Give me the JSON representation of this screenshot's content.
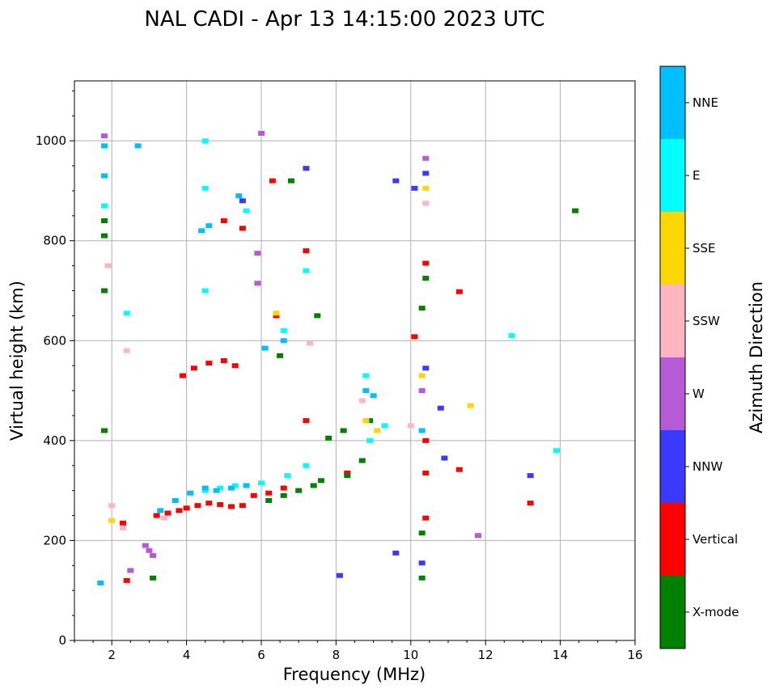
{
  "chart_data": {
    "type": "scatter",
    "title": "NAL CADI - Apr 13 14:15:00 2023 UTC",
    "xlabel": "Frequency (MHz)",
    "ylabel": "Virtual height (km)",
    "xlim": [
      1,
      16
    ],
    "ylim": [
      0,
      1120
    ],
    "xticks": [
      2,
      4,
      6,
      8,
      10,
      12,
      14,
      16
    ],
    "yticks": [
      0,
      200,
      400,
      600,
      800,
      1000
    ],
    "grid": true,
    "colorbar": {
      "title": "Azimuth Direction",
      "categories": [
        {
          "name": "X-mode",
          "color": "#008000"
        },
        {
          "name": "Vertical",
          "color": "#ff0000"
        },
        {
          "name": "NNW",
          "color": "#3a3aff"
        },
        {
          "name": "W",
          "color": "#b65ad6"
        },
        {
          "name": "SSW",
          "color": "#ffb6c1"
        },
        {
          "name": "SSE",
          "color": "#ffd700"
        },
        {
          "name": "E",
          "color": "#00ffff"
        },
        {
          "name": "NNE",
          "color": "#00bfff"
        }
      ]
    },
    "series": [
      {
        "name": "Vertical",
        "points": [
          [
            3.2,
            250
          ],
          [
            3.5,
            255
          ],
          [
            3.8,
            260
          ],
          [
            4.0,
            265
          ],
          [
            4.3,
            270
          ],
          [
            4.6,
            275
          ],
          [
            4.9,
            272
          ],
          [
            5.2,
            268
          ],
          [
            5.5,
            270
          ],
          [
            5.8,
            290
          ],
          [
            6.2,
            295
          ],
          [
            6.6,
            305
          ],
          [
            3.9,
            530
          ],
          [
            4.2,
            545
          ],
          [
            4.6,
            555
          ],
          [
            5.0,
            560
          ],
          [
            5.3,
            550
          ],
          [
            6.3,
            920
          ],
          [
            5.0,
            840
          ],
          [
            5.5,
            825
          ],
          [
            10.4,
            400
          ],
          [
            10.4,
            335
          ],
          [
            10.4,
            245
          ],
          [
            10.4,
            755
          ],
          [
            11.3,
            698
          ],
          [
            10.1,
            608
          ],
          [
            13.2,
            275
          ],
          [
            11.3,
            342
          ],
          [
            7.2,
            440
          ],
          [
            8.3,
            335
          ],
          [
            6.4,
            650
          ],
          [
            7.2,
            780
          ],
          [
            2.4,
            120
          ],
          [
            2.3,
            235
          ]
        ]
      },
      {
        "name": "X-mode",
        "points": [
          [
            6.2,
            280
          ],
          [
            6.6,
            290
          ],
          [
            7.0,
            300
          ],
          [
            7.4,
            310
          ],
          [
            7.6,
            320
          ],
          [
            8.3,
            330
          ],
          [
            8.7,
            360
          ],
          [
            8.2,
            420
          ],
          [
            8.9,
            440
          ],
          [
            14.4,
            860
          ],
          [
            10.3,
            665
          ],
          [
            10.4,
            725
          ],
          [
            10.3,
            215
          ],
          [
            10.3,
            125
          ],
          [
            3.1,
            125
          ],
          [
            6.5,
            570
          ],
          [
            7.5,
            650
          ],
          [
            6.8,
            920
          ],
          [
            1.8,
            840
          ],
          [
            1.8,
            810
          ],
          [
            1.8,
            700
          ],
          [
            1.8,
            420
          ],
          [
            7.8,
            405
          ]
        ]
      },
      {
        "name": "NNW",
        "points": [
          [
            10.4,
            935
          ],
          [
            10.1,
            905
          ],
          [
            9.6,
            920
          ],
          [
            10.4,
            545
          ],
          [
            10.8,
            465
          ],
          [
            10.9,
            365
          ],
          [
            13.2,
            330
          ],
          [
            10.3,
            155
          ],
          [
            8.1,
            130
          ],
          [
            9.6,
            175
          ],
          [
            5.5,
            880
          ],
          [
            7.2,
            945
          ]
        ]
      },
      {
        "name": "W",
        "points": [
          [
            3.0,
            180
          ],
          [
            3.1,
            170
          ],
          [
            2.9,
            190
          ],
          [
            10.4,
            965
          ],
          [
            10.3,
            500
          ],
          [
            11.8,
            210
          ],
          [
            5.9,
            775
          ],
          [
            5.9,
            715
          ],
          [
            6.0,
            1015
          ],
          [
            2.5,
            140
          ],
          [
            1.8,
            1010
          ]
        ]
      },
      {
        "name": "SSW",
        "points": [
          [
            3.4,
            245
          ],
          [
            2.3,
            225
          ],
          [
            2.0,
            270
          ],
          [
            8.7,
            480
          ],
          [
            10.0,
            430
          ],
          [
            10.4,
            875
          ],
          [
            2.4,
            580
          ],
          [
            7.3,
            595
          ],
          [
            1.9,
            750
          ]
        ]
      },
      {
        "name": "SSE",
        "points": [
          [
            8.8,
            440
          ],
          [
            9.1,
            420
          ],
          [
            10.3,
            530
          ],
          [
            11.6,
            470
          ],
          [
            6.4,
            655
          ],
          [
            10.4,
            905
          ],
          [
            2.0,
            240
          ]
        ]
      },
      {
        "name": "E",
        "points": [
          [
            4.5,
            300
          ],
          [
            4.9,
            305
          ],
          [
            5.3,
            310
          ],
          [
            6.0,
            315
          ],
          [
            6.7,
            330
          ],
          [
            7.2,
            350
          ],
          [
            8.9,
            400
          ],
          [
            9.3,
            430
          ],
          [
            12.7,
            610
          ],
          [
            13.9,
            380
          ],
          [
            7.2,
            740
          ],
          [
            5.6,
            860
          ],
          [
            4.5,
            1000
          ],
          [
            4.5,
            905
          ],
          [
            1.8,
            870
          ],
          [
            2.4,
            655
          ],
          [
            4.5,
            700
          ],
          [
            6.6,
            620
          ],
          [
            8.8,
            530
          ]
        ]
      },
      {
        "name": "NNE",
        "points": [
          [
            3.3,
            260
          ],
          [
            3.7,
            280
          ],
          [
            4.1,
            295
          ],
          [
            4.5,
            305
          ],
          [
            4.8,
            300
          ],
          [
            5.2,
            305
          ],
          [
            5.6,
            310
          ],
          [
            6.1,
            585
          ],
          [
            6.6,
            600
          ],
          [
            4.4,
            820
          ],
          [
            5.4,
            890
          ],
          [
            2.7,
            990
          ],
          [
            1.8,
            990
          ],
          [
            1.8,
            930
          ],
          [
            9.0,
            490
          ],
          [
            10.3,
            420
          ],
          [
            1.7,
            115
          ],
          [
            4.6,
            830
          ],
          [
            8.8,
            500
          ]
        ]
      }
    ]
  }
}
